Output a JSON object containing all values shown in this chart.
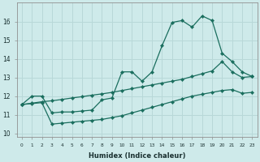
{
  "xlabel": "Humidex (Indice chaleur)",
  "background_color": "#ceeaea",
  "grid_color": "#b8d8d8",
  "line_color": "#1a6e5e",
  "x_ticks": [
    0,
    1,
    2,
    3,
    4,
    5,
    6,
    7,
    8,
    9,
    10,
    11,
    12,
    13,
    14,
    15,
    16,
    17,
    18,
    19,
    20,
    21,
    22,
    23
  ],
  "xlim": [
    -0.5,
    23.5
  ],
  "ylim": [
    9.8,
    17.0
  ],
  "y_ticks": [
    10,
    11,
    12,
    13,
    14,
    15,
    16
  ],
  "line1_x": [
    0,
    1,
    2,
    3,
    4,
    5,
    6,
    7,
    8,
    9,
    10,
    11,
    12,
    13,
    14,
    15,
    16,
    17,
    18,
    19,
    20,
    21,
    22,
    23
  ],
  "line1_y": [
    11.55,
    12.0,
    12.0,
    11.1,
    11.15,
    11.15,
    11.2,
    11.25,
    11.8,
    11.9,
    13.3,
    13.3,
    12.8,
    13.3,
    14.7,
    15.95,
    16.05,
    15.7,
    16.3,
    16.05,
    14.3,
    13.85,
    13.3,
    13.05
  ],
  "line2_x": [
    0,
    1,
    2,
    3,
    4,
    5,
    6,
    7,
    8,
    9,
    10,
    11,
    12,
    13,
    14,
    15,
    16,
    17,
    18,
    19,
    20,
    21,
    22,
    23
  ],
  "line2_y": [
    11.55,
    11.62,
    11.7,
    11.75,
    11.82,
    11.9,
    11.97,
    12.05,
    12.12,
    12.2,
    12.3,
    12.4,
    12.5,
    12.6,
    12.7,
    12.8,
    12.9,
    13.05,
    13.2,
    13.35,
    13.85,
    13.3,
    13.0,
    13.05
  ],
  "line3_x": [
    0,
    1,
    2,
    3,
    4,
    5,
    6,
    7,
    8,
    9,
    10,
    11,
    12,
    13,
    14,
    15,
    16,
    17,
    18,
    19,
    20,
    21,
    22,
    23
  ],
  "line3_y": [
    11.55,
    11.6,
    11.65,
    10.5,
    10.55,
    10.6,
    10.65,
    10.7,
    10.75,
    10.85,
    10.95,
    11.1,
    11.25,
    11.4,
    11.55,
    11.7,
    11.85,
    12.0,
    12.1,
    12.2,
    12.3,
    12.35,
    12.15,
    12.2
  ]
}
